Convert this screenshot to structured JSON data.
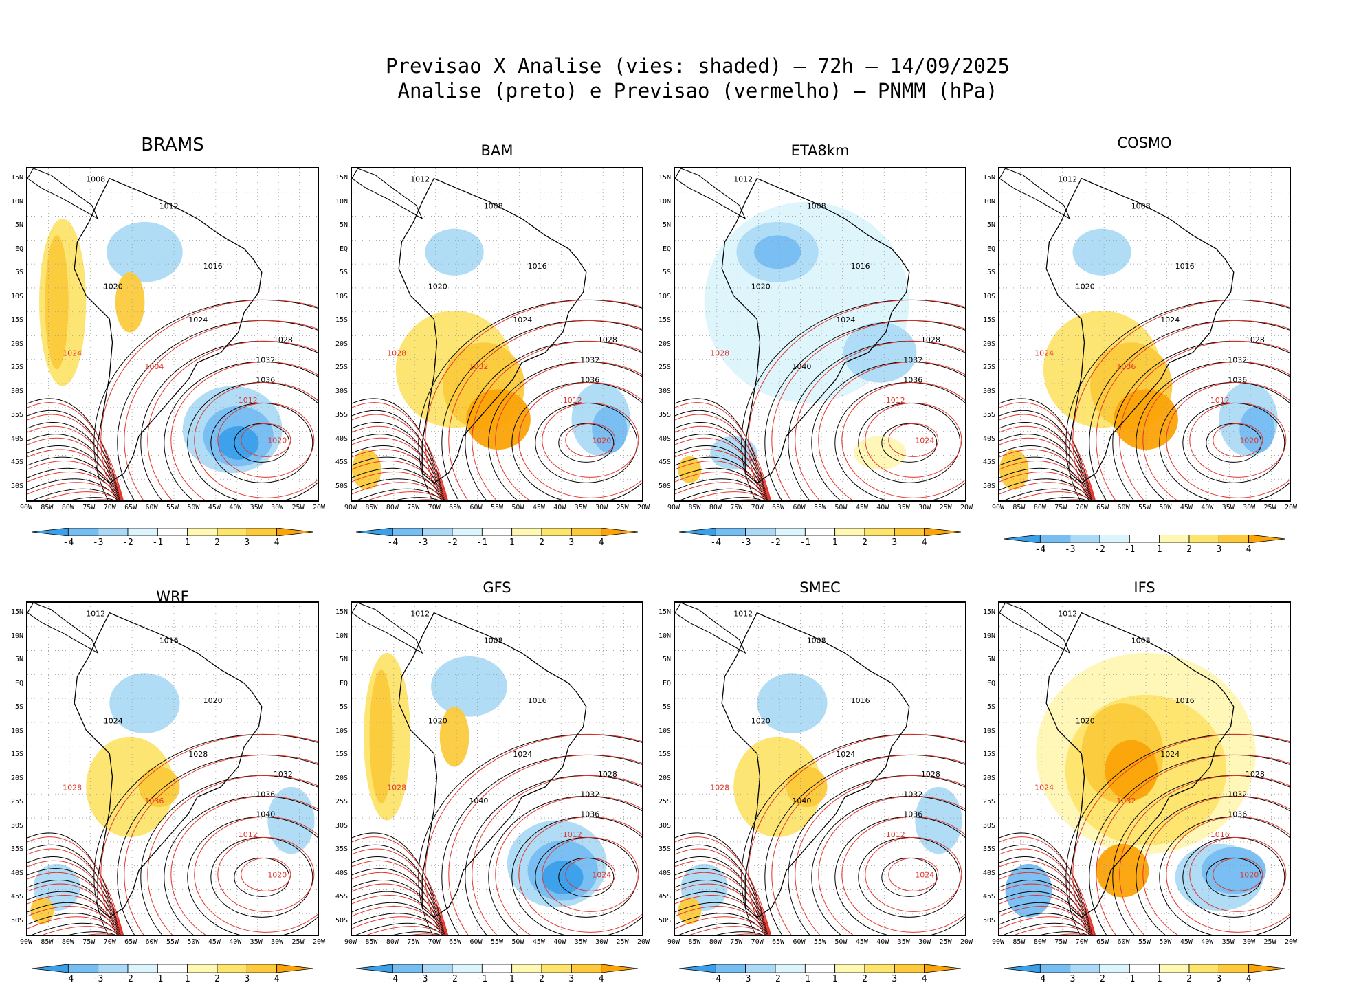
{
  "title": {
    "line1": "Previsao X Analise (vies: shaded) – 72h – 14/09/2025",
    "line2": "Analise (preto) e Previsao (vermelho) – PNMM (hPa)"
  },
  "colors": {
    "bias_neg4": "#3aa0ea",
    "bias_neg3": "#76bdf2",
    "bias_neg2": "#acdaf6",
    "bias_neg1": "#dcf4fc",
    "bias_zero": "#ffffff",
    "bias_pos1": "#fff7b4",
    "bias_pos2": "#fde46c",
    "bias_pos3": "#fcca3c",
    "bias_pos4": "#fba307",
    "analysis_contour": "#000000",
    "forecast_contour": "#e3342b"
  },
  "axes": {
    "lat_labels": [
      "15N",
      "10N",
      "5N",
      "EQ",
      "5S",
      "10S",
      "15S",
      "20S",
      "25S",
      "30S",
      "35S",
      "40S",
      "45S",
      "50S"
    ],
    "lon_labels": [
      "90W",
      "85W",
      "80W",
      "75W",
      "70W",
      "65W",
      "60W",
      "55W",
      "50W",
      "45W",
      "40W",
      "35W",
      "30W",
      "25W",
      "20W"
    ]
  },
  "colorbar": {
    "ticks": [
      "-4",
      "-3",
      "-2",
      "-1",
      "1",
      "2",
      "3",
      "4"
    ]
  },
  "panels": [
    {
      "name": "BRAMS",
      "bias": "mixed-neg",
      "isobars": [
        {
          "v": "1008",
          "a": "k"
        },
        {
          "v": "1012",
          "a": "k"
        },
        {
          "v": "1016",
          "a": "k"
        },
        {
          "v": "1020",
          "a": "k"
        },
        {
          "v": "1024",
          "a": "k"
        },
        {
          "v": "1028",
          "a": "k"
        },
        {
          "v": "1032",
          "a": "k"
        },
        {
          "v": "1036",
          "a": "k"
        },
        {
          "v": "1012",
          "a": "r"
        },
        {
          "v": "1020",
          "a": "r"
        },
        {
          "v": "1024",
          "a": "r"
        },
        {
          "v": "1004",
          "a": "r"
        }
      ]
    },
    {
      "name": "BAM",
      "bias": "mixed-pos",
      "isobars": [
        {
          "v": "1012",
          "a": "k"
        },
        {
          "v": "1008",
          "a": "k"
        },
        {
          "v": "1016",
          "a": "k"
        },
        {
          "v": "1020",
          "a": "k"
        },
        {
          "v": "1024",
          "a": "k"
        },
        {
          "v": "1028",
          "a": "k"
        },
        {
          "v": "1032",
          "a": "k"
        },
        {
          "v": "1036",
          "a": "k"
        },
        {
          "v": "1012",
          "a": "r"
        },
        {
          "v": "1020",
          "a": "r"
        },
        {
          "v": "1028",
          "a": "r"
        },
        {
          "v": "1032",
          "a": "r"
        }
      ]
    },
    {
      "name": "ETA8km",
      "bias": "negative",
      "isobars": [
        {
          "v": "1012",
          "a": "k"
        },
        {
          "v": "1008",
          "a": "k"
        },
        {
          "v": "1016",
          "a": "k"
        },
        {
          "v": "1020",
          "a": "k"
        },
        {
          "v": "1024",
          "a": "k"
        },
        {
          "v": "1028",
          "a": "k"
        },
        {
          "v": "1032",
          "a": "k"
        },
        {
          "v": "1036",
          "a": "k"
        },
        {
          "v": "1012",
          "a": "r"
        },
        {
          "v": "1024",
          "a": "r"
        },
        {
          "v": "1028",
          "a": "r"
        },
        {
          "v": "1040",
          "a": "k"
        }
      ]
    },
    {
      "name": "COSMO",
      "bias": "mixed-pos",
      "isobars": [
        {
          "v": "1012",
          "a": "k"
        },
        {
          "v": "1008",
          "a": "k"
        },
        {
          "v": "1016",
          "a": "k"
        },
        {
          "v": "1020",
          "a": "k"
        },
        {
          "v": "1024",
          "a": "k"
        },
        {
          "v": "1028",
          "a": "k"
        },
        {
          "v": "1032",
          "a": "k"
        },
        {
          "v": "1036",
          "a": "k"
        },
        {
          "v": "1012",
          "a": "r"
        },
        {
          "v": "1020",
          "a": "r"
        },
        {
          "v": "1024",
          "a": "r"
        },
        {
          "v": "1036",
          "a": "r"
        }
      ]
    },
    {
      "name": "WRF",
      "bias": "mixed",
      "isobars": [
        {
          "v": "1012",
          "a": "k"
        },
        {
          "v": "1016",
          "a": "k"
        },
        {
          "v": "1020",
          "a": "k"
        },
        {
          "v": "1024",
          "a": "k"
        },
        {
          "v": "1028",
          "a": "k"
        },
        {
          "v": "1032",
          "a": "k"
        },
        {
          "v": "1036",
          "a": "k"
        },
        {
          "v": "1040",
          "a": "k"
        },
        {
          "v": "1012",
          "a": "r"
        },
        {
          "v": "1020",
          "a": "r"
        },
        {
          "v": "1028",
          "a": "r"
        },
        {
          "v": "1036",
          "a": "r"
        }
      ]
    },
    {
      "name": "GFS",
      "bias": "mixed-neg",
      "isobars": [
        {
          "v": "1012",
          "a": "k"
        },
        {
          "v": "1008",
          "a": "k"
        },
        {
          "v": "1016",
          "a": "k"
        },
        {
          "v": "1020",
          "a": "k"
        },
        {
          "v": "1024",
          "a": "k"
        },
        {
          "v": "1028",
          "a": "k"
        },
        {
          "v": "1032",
          "a": "k"
        },
        {
          "v": "1036",
          "a": "k"
        },
        {
          "v": "1012",
          "a": "r"
        },
        {
          "v": "1024",
          "a": "r"
        },
        {
          "v": "1028",
          "a": "r"
        },
        {
          "v": "1040",
          "a": "k"
        }
      ]
    },
    {
      "name": "SMEC",
      "bias": "mixed",
      "isobars": [
        {
          "v": "1012",
          "a": "k"
        },
        {
          "v": "1008",
          "a": "k"
        },
        {
          "v": "1016",
          "a": "k"
        },
        {
          "v": "1020",
          "a": "k"
        },
        {
          "v": "1024",
          "a": "k"
        },
        {
          "v": "1028",
          "a": "k"
        },
        {
          "v": "1032",
          "a": "k"
        },
        {
          "v": "1036",
          "a": "k"
        },
        {
          "v": "1012",
          "a": "r"
        },
        {
          "v": "1024",
          "a": "r"
        },
        {
          "v": "1028",
          "a": "r"
        },
        {
          "v": "1040",
          "a": "k"
        }
      ]
    },
    {
      "name": "IFS",
      "bias": "positive",
      "isobars": [
        {
          "v": "1012",
          "a": "k"
        },
        {
          "v": "1008",
          "a": "k"
        },
        {
          "v": "1016",
          "a": "k"
        },
        {
          "v": "1020",
          "a": "k"
        },
        {
          "v": "1024",
          "a": "k"
        },
        {
          "v": "1028",
          "a": "k"
        },
        {
          "v": "1032",
          "a": "k"
        },
        {
          "v": "1036",
          "a": "k"
        },
        {
          "v": "1016",
          "a": "r"
        },
        {
          "v": "1020",
          "a": "r"
        },
        {
          "v": "1024",
          "a": "r"
        },
        {
          "v": "1032",
          "a": "r"
        }
      ]
    }
  ]
}
